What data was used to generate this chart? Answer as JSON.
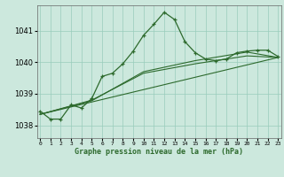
{
  "title": "Graphe pression niveau de la mer (hPa)",
  "xlabel_ticks": [
    0,
    1,
    2,
    3,
    4,
    5,
    6,
    7,
    8,
    9,
    10,
    11,
    12,
    13,
    14,
    15,
    16,
    17,
    18,
    19,
    20,
    21,
    22,
    23
  ],
  "ylim": [
    1037.6,
    1041.8
  ],
  "xlim": [
    -0.3,
    23.3
  ],
  "yticks": [
    1038,
    1039,
    1040,
    1041
  ],
  "background_color": "#cce8dd",
  "grid_color": "#99ccbb",
  "line_color": "#2d6a2d",
  "line1_x": [
    0,
    1,
    2,
    3,
    4,
    5,
    6,
    7,
    8,
    9,
    10,
    11,
    12,
    13,
    14,
    15,
    16,
    17,
    18,
    19,
    20,
    21,
    22,
    23
  ],
  "line1_y": [
    1038.45,
    1038.2,
    1038.2,
    1038.65,
    1038.55,
    1038.85,
    1039.55,
    1039.65,
    1039.95,
    1040.35,
    1040.85,
    1041.2,
    1041.58,
    1041.35,
    1040.65,
    1040.3,
    1040.1,
    1040.05,
    1040.1,
    1040.3,
    1040.35,
    1040.38,
    1040.38,
    1040.18
  ],
  "line2_x": [
    0,
    23
  ],
  "line2_y": [
    1038.35,
    1040.15
  ],
  "line3_x": [
    0,
    5,
    10,
    15,
    20,
    23
  ],
  "line3_y": [
    1038.35,
    1038.8,
    1039.65,
    1039.95,
    1040.2,
    1040.15
  ],
  "line4_x": [
    0,
    5,
    10,
    15,
    20,
    23
  ],
  "line4_y": [
    1038.35,
    1038.78,
    1039.7,
    1040.05,
    1040.32,
    1040.15
  ]
}
